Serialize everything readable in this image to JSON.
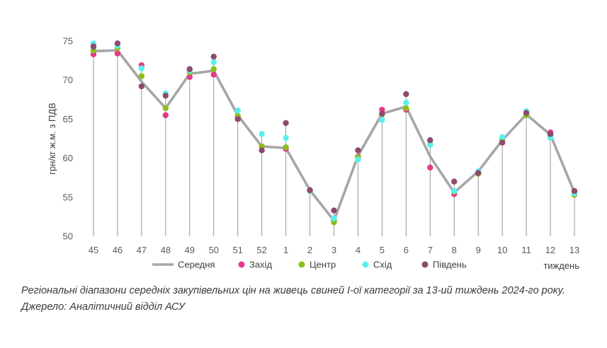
{
  "chart_data": {
    "type": "line",
    "title": "",
    "xlabel": "тиждень",
    "ylabel": "грн/кг ж.м. з ПДВ",
    "ylim": [
      50,
      75
    ],
    "yticks": [
      50,
      55,
      60,
      65,
      70,
      75
    ],
    "categories": [
      "45",
      "46",
      "47",
      "48",
      "49",
      "50",
      "51",
      "52",
      "1",
      "2",
      "3",
      "4",
      "5",
      "6",
      "7",
      "8",
      "9",
      "10",
      "11",
      "12",
      "13"
    ],
    "grid": "vertical lines from data to x-axis",
    "legend_position": "bottom",
    "series": [
      {
        "name": "Середня",
        "kind": "line",
        "color": "#a6a6a6",
        "values": [
          73.7,
          73.8,
          69.8,
          66.4,
          70.8,
          71.2,
          65.5,
          61.5,
          61.3,
          55.9,
          52.0,
          60.3,
          65.7,
          66.6,
          60.2,
          55.6,
          58.3,
          62.3,
          65.6,
          63.0,
          55.6
        ]
      },
      {
        "name": "Захід",
        "kind": "marker",
        "color": "#e8388a",
        "values": [
          73.3,
          73.4,
          71.9,
          65.5,
          70.4,
          70.7,
          65.3,
          61.5,
          61.2,
          55.9,
          52.1,
          60.2,
          66.2,
          66.2,
          58.8,
          55.4,
          58.1,
          62.0,
          65.6,
          63.3,
          55.6
        ]
      },
      {
        "name": "Центр",
        "kind": "marker",
        "color": "#8cc019",
        "values": [
          73.8,
          74.1,
          70.5,
          66.4,
          71.0,
          71.4,
          65.4,
          61.5,
          61.4,
          55.8,
          51.8,
          60.1,
          65.6,
          66.4,
          61.8,
          55.7,
          58.0,
          62.4,
          65.5,
          62.9,
          55.3
        ]
      },
      {
        "name": "Схід",
        "kind": "marker",
        "color": "#5af0f0",
        "values": [
          74.7,
          74.4,
          71.5,
          68.3,
          71.2,
          72.3,
          66.1,
          63.1,
          62.6,
          55.8,
          52.3,
          59.8,
          64.9,
          67.1,
          61.7,
          55.8,
          58.3,
          62.7,
          66.0,
          62.6,
          55.5
        ]
      },
      {
        "name": "Південь",
        "kind": "marker",
        "color": "#8e4a6e",
        "values": [
          74.3,
          74.7,
          69.2,
          68.0,
          71.4,
          73.0,
          65.0,
          61.0,
          64.5,
          55.9,
          53.3,
          61.0,
          65.7,
          68.2,
          62.3,
          57.0,
          58.1,
          62.0,
          65.8,
          63.1,
          55.8
        ]
      }
    ]
  },
  "caption": {
    "line1": "Регіональні діапазони середніх закупівельних цін на живець свиней І-ої категорії за 13-ий тиждень 2024-го року.",
    "line2": "Джерело: Аналітичний відділ АСУ"
  }
}
